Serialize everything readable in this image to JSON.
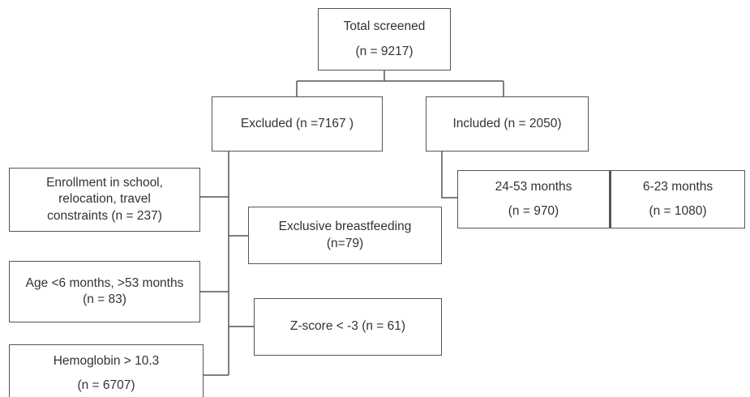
{
  "nodes": {
    "total": {
      "line1": "Total screened",
      "line2": "(n = 9217)"
    },
    "excluded": {
      "line1": "Excluded (n =7167 )"
    },
    "included": {
      "line1": "Included (n = 2050)"
    },
    "group_24_53": {
      "line1": "24-53 months",
      "line2": "(n = 970)"
    },
    "group_6_23": {
      "line1": "6-23 months",
      "line2": "(n = 1080)"
    },
    "enrollment": {
      "line1": "Enrollment in school,",
      "line2": "relocation, travel",
      "line3": "constraints (n = 237)"
    },
    "breastfeeding": {
      "line1": "Exclusive breastfeeding",
      "line2": "(n=79)"
    },
    "age": {
      "line1": "Age <6 months, >53 months",
      "line2": "(n = 83)"
    },
    "zscore": {
      "line1": "Z-score < -3 (n = 61)"
    },
    "hemoglobin": {
      "line1": "Hemoglobin > 10.3",
      "line2": "(n = 6707)"
    }
  },
  "colors": {
    "line": "#555555",
    "text": "#333333",
    "background": "#ffffff"
  }
}
